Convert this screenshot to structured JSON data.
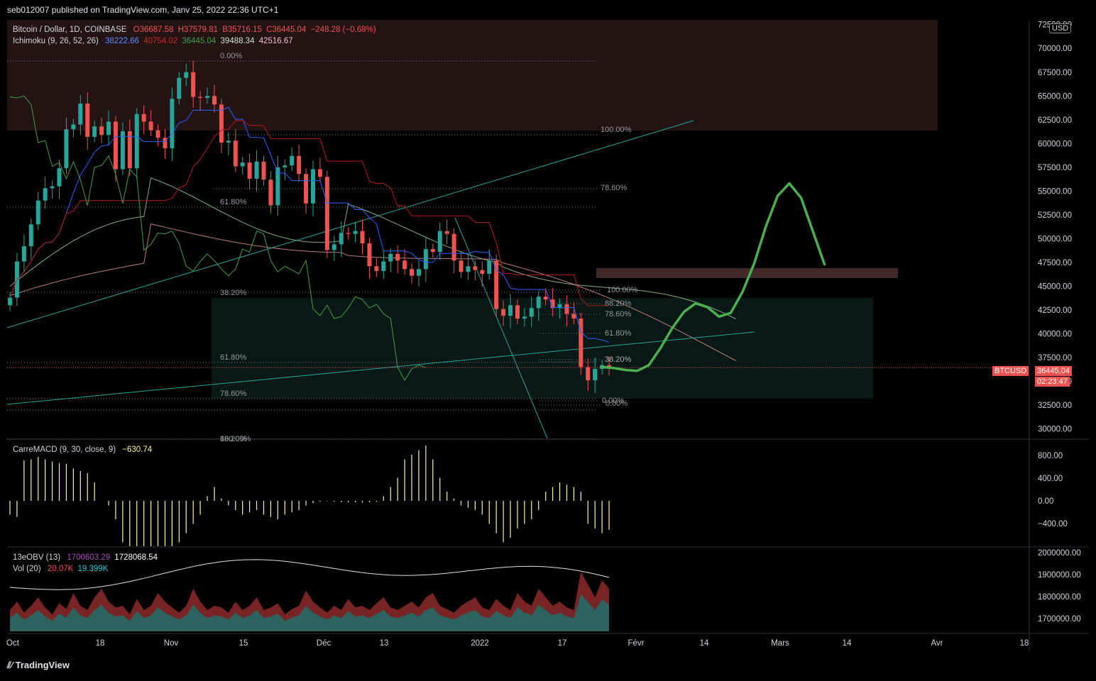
{
  "header": {
    "publisher": "seb012007 published on TradingView.com, Janv 25, 2022 22:36 UTC+1"
  },
  "legend": {
    "symbol": "Bitcoin / Dollar, 1D, COINBASE",
    "ohlc": {
      "o": "O36687.58",
      "h": "H37579.81",
      "b": "B35716.15",
      "c": "C36445.04",
      "chg": "−248.28 (−0.68%)"
    },
    "ichimoku": {
      "label": "Ichimoku (9, 26, 52, 26)",
      "v1": "38222.66",
      "v2": "40754.02",
      "v3": "36445.04",
      "v4": "39488.34",
      "v5": "42516.67"
    },
    "macd": {
      "label": "CarreMACD (9, 30, close, 9)",
      "value": "−630.74"
    },
    "obv": {
      "label": "13eOBV (13)",
      "v1": "1700603.29",
      "v2": "1728068.54"
    },
    "vol": {
      "label": "Vol (20)",
      "v1": "20.07K",
      "v2": "19.399K"
    }
  },
  "currency": "USD",
  "last_price": {
    "ticker": "BTCUSD",
    "price": "36445.04",
    "countdown": "02:23:47"
  },
  "footer": {
    "logo": "TradingView"
  },
  "colors": {
    "bull": "#26a69a",
    "bear": "#ef5350",
    "tenkan": "#2962ff",
    "kijun": "#b71c1c",
    "chikou": "#43a047",
    "spanA": "#a5d6a7",
    "spanB": "#ef9a9a",
    "forecast": "#4caf50",
    "macd": "#fff59d",
    "obv": "#ab47bc"
  },
  "chart_data": {
    "type": "line",
    "title": "Bitcoin / Dollar, 1D, COINBASE",
    "price_axis": [
      "72500.00",
      "70000.00",
      "67500.00",
      "65000.00",
      "62500.00",
      "60000.00",
      "57500.00",
      "55000.00",
      "52500.00",
      "50000.00",
      "47500.00",
      "45000.00",
      "42500.00",
      "40000.00",
      "37500.00",
      "35000.00",
      "32500.00",
      "30000.00"
    ],
    "macd_axis": [
      "800.00",
      "400.00",
      "0.00",
      "−400.00"
    ],
    "obv_axis": [
      "2000000.00",
      "1900000.00",
      "1800000.00",
      "1700000.00"
    ],
    "x_ticks": [
      "Oct",
      "18",
      "Nov",
      "15",
      "Déc",
      "13",
      "2022",
      "17",
      "Févr",
      "14",
      "Mars",
      "14",
      "Avr",
      "18"
    ],
    "fib_labels": [
      "0.00%",
      "100.00%",
      "78.60%",
      "61.80%",
      "38.20%",
      "61.80%",
      "78.60%",
      "88.20%",
      "100.00%",
      "38.20%",
      "100.00%",
      "88.20%",
      "78.60%",
      "61.80%",
      "38.20%",
      "0.00%",
      "0.00%"
    ],
    "series": [
      {
        "name": "BTCUSD",
        "values": [
          43800,
          47600,
          49200,
          51500,
          54000,
          55300,
          55500,
          57400,
          61500,
          62000,
          64200,
          60700,
          61800,
          60900,
          62300,
          57300,
          61300,
          57400,
          63100,
          62300,
          61400,
          60600,
          59500,
          64700,
          66900,
          67500,
          64900,
          64800,
          65000,
          64100,
          60100,
          60300,
          57600,
          58000,
          56300,
          58100,
          56200,
          53500,
          57500,
          57700,
          58700,
          56800,
          53700,
          57300,
          56500,
          48800,
          49400,
          50600,
          50500,
          50800,
          49500,
          47100,
          46600,
          47600,
          48400,
          47700,
          46800,
          46100,
          46800,
          48900,
          48600,
          50800,
          50500,
          47700,
          46500,
          47100,
          46700,
          46300,
          47700,
          42600,
          41900,
          43000,
          41600,
          41800,
          42700,
          43900,
          43600,
          42700,
          43100,
          42100,
          41600,
          36500,
          35100,
          36300,
          36700,
          36445
        ]
      },
      {
        "name": "forecast",
        "values": [
          36500,
          36400,
          36200,
          36100,
          36700,
          38500,
          40600,
          42300,
          43200,
          42800,
          41800,
          42200,
          44400,
          47400,
          51300,
          54500,
          55800,
          54300,
          50800,
          47300
        ]
      }
    ],
    "macd_values": [
      -300,
      -350,
      880,
      900,
      950,
      900,
      850,
      820,
      800,
      700,
      650,
      600,
      400,
      0,
      -100,
      -400,
      -900,
      -1200,
      -1400,
      -1500,
      -1600,
      -1700,
      -1500,
      -1200,
      -900,
      -700,
      -500,
      -300,
      100,
      300,
      50,
      -100,
      -200,
      -300,
      -250,
      -200,
      -300,
      -350,
      -400,
      -300,
      -250,
      -200,
      -100,
      -50,
      -20,
      -10,
      -20,
      -30,
      -30,
      -30,
      -40,
      -30,
      -20,
      100,
      300,
      500,
      900,
      1000,
      1100,
      1200,
      900,
      500,
      200,
      50,
      -100,
      -150,
      -200,
      -300,
      -500,
      -700,
      -900,
      -800,
      -600,
      -500,
      -400,
      -200,
      200,
      300,
      400,
      350,
      300,
      200,
      -500,
      -600,
      -700,
      -630
    ],
    "volume_values": [
      25,
      35,
      22,
      30,
      40,
      28,
      20,
      33,
      26,
      45,
      30,
      25,
      40,
      50,
      35,
      28,
      30,
      20,
      38,
      25,
      30,
      45,
      35,
      28,
      22,
      30,
      50,
      35,
      25,
      30,
      28,
      22,
      35,
      25,
      30,
      40,
      25,
      28,
      33,
      20,
      26,
      30,
      48,
      35,
      28,
      22,
      30,
      25,
      38,
      28,
      30,
      25,
      33,
      40,
      28,
      25,
      30,
      35,
      28,
      40,
      45,
      30,
      26,
      22,
      30,
      35,
      40,
      28,
      25,
      38,
      30,
      25,
      45,
      35,
      30,
      50,
      40,
      30,
      35,
      28,
      25,
      70,
      55,
      40,
      60,
      50
    ],
    "ylim": [
      29000,
      73000
    ]
  }
}
